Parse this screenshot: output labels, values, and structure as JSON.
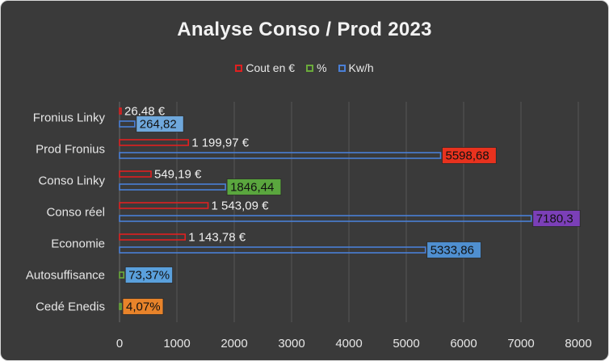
{
  "chart_data": {
    "type": "bar",
    "orientation": "horizontal",
    "title": "Analyse Conso / Prod 2023",
    "categories": [
      "Fronius Linky",
      "Prod Fronius",
      "Conso Linky",
      "Conso réel",
      "Economie",
      "Autosuffisance",
      "Cedé Enedis"
    ],
    "xlim": [
      0,
      8000
    ],
    "x_ticks": [
      "0",
      "1000",
      "2000",
      "3000",
      "4000",
      "5000",
      "6000",
      "7000",
      "8000"
    ],
    "grid": true,
    "legend_position": "top",
    "series": [
      {
        "name": "Cout en €",
        "color": "#e02020",
        "values": [
          26.48,
          1199.97,
          549.19,
          1543.09,
          1143.78,
          null,
          null
        ],
        "labels": [
          "26,48 €",
          "1 199,97 €",
          "549,19 €",
          "1 543,09 €",
          "1 143,78 €",
          null,
          null
        ]
      },
      {
        "name": "%",
        "color": "#6aaa3a",
        "values": [
          null,
          null,
          null,
          null,
          null,
          73.37,
          4.07
        ],
        "labels": [
          null,
          null,
          null,
          null,
          null,
          "73,37%",
          "4,07%"
        ]
      },
      {
        "name": "Kw/h",
        "color": "#4a7fd6",
        "values": [
          264.82,
          5598.68,
          1846.44,
          7180.3,
          5333.86,
          null,
          null
        ],
        "labels": [
          "264,82",
          "5598,68",
          "1846,44",
          "7180,3",
          "5333,86",
          null,
          null
        ]
      }
    ],
    "label_boxes": {
      "Fronius Linky|Kw/h": "#6fa8dc",
      "Prod Fronius|Kw/h": "#e8321e",
      "Conso Linky|Kw/h": "#5aa63e",
      "Conso réel|Kw/h": "#7b3fb8",
      "Economie|Kw/h": "#4f8fd0",
      "Autosuffisance|%": "#5aa0dc",
      "Cedé Enedis|%": "#e8832a"
    }
  }
}
